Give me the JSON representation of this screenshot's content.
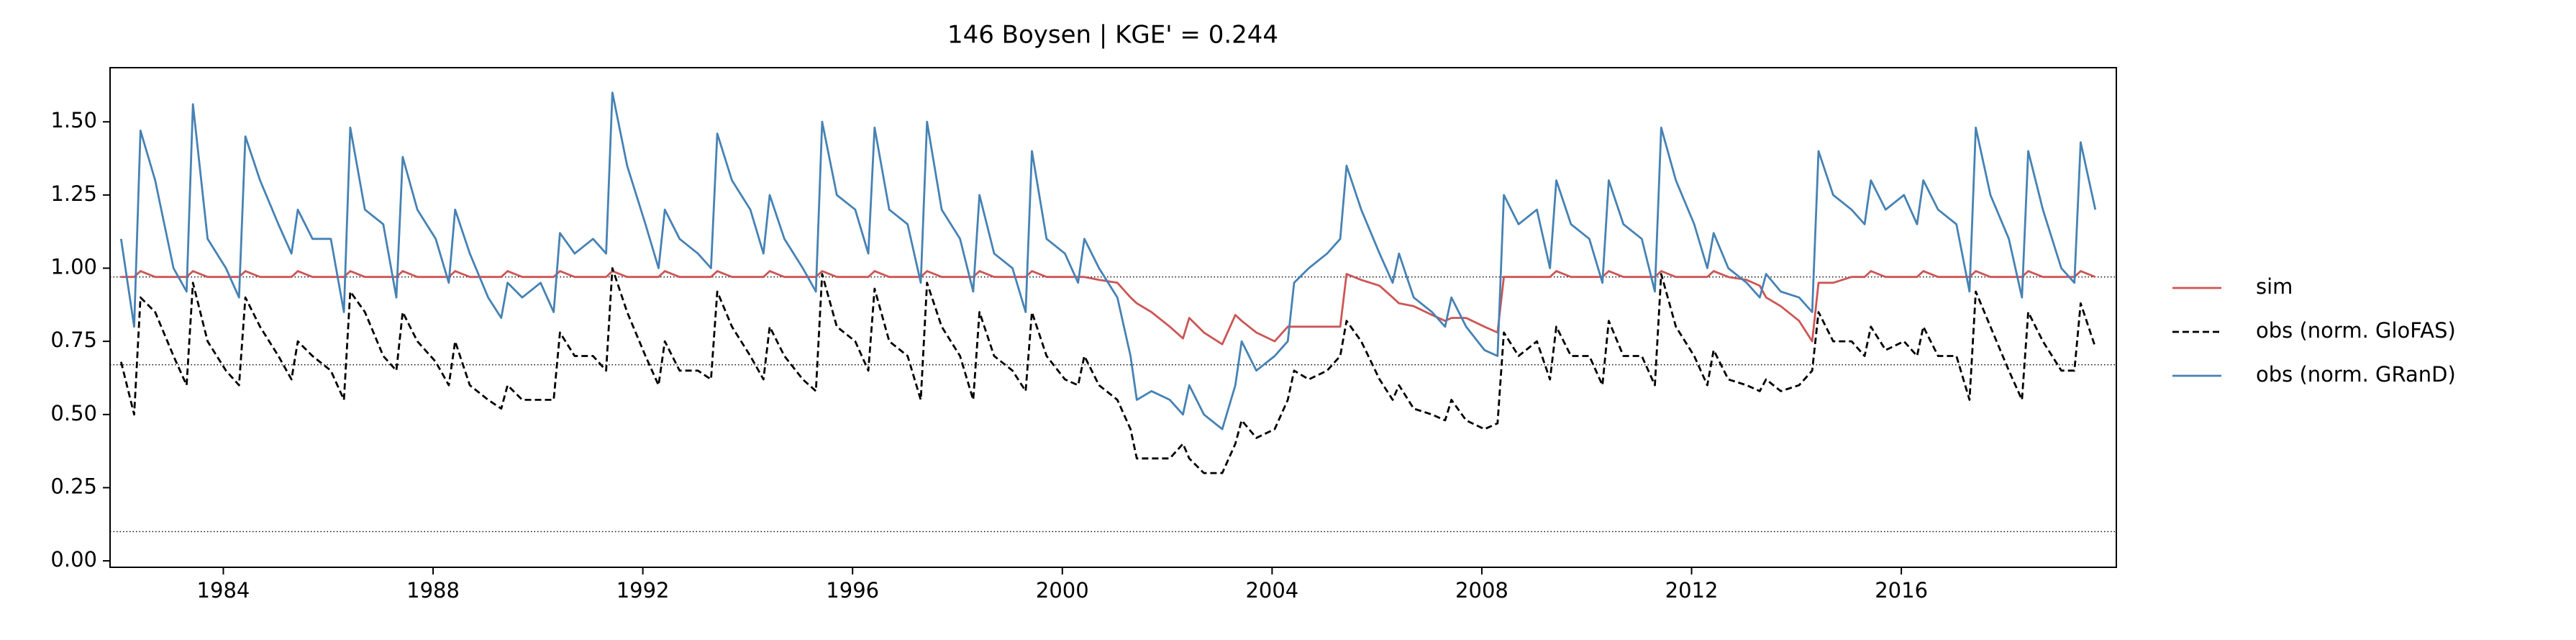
{
  "chart_data": {
    "type": "line",
    "title": "146  Boysen | KGE' = 0.244",
    "x": [
      1982.05,
      1982.3,
      1982.42,
      1982.7,
      1983.05,
      1983.3,
      1983.42,
      1983.7,
      1984.05,
      1984.3,
      1984.42,
      1984.7,
      1985.05,
      1985.3,
      1985.42,
      1985.7,
      1986.05,
      1986.3,
      1986.42,
      1986.7,
      1987.05,
      1987.3,
      1987.42,
      1987.7,
      1988.05,
      1988.3,
      1988.42,
      1988.7,
      1989.05,
      1989.3,
      1989.42,
      1989.7,
      1990.05,
      1990.3,
      1990.42,
      1990.7,
      1991.05,
      1991.3,
      1991.42,
      1991.7,
      1992.05,
      1992.3,
      1992.42,
      1992.7,
      1993.05,
      1993.3,
      1993.42,
      1993.7,
      1994.05,
      1994.3,
      1994.42,
      1994.7,
      1995.05,
      1995.3,
      1995.42,
      1995.7,
      1996.05,
      1996.3,
      1996.42,
      1996.7,
      1997.05,
      1997.3,
      1997.42,
      1997.7,
      1998.05,
      1998.3,
      1998.42,
      1998.7,
      1999.05,
      1999.3,
      1999.42,
      1999.7,
      2000.05,
      2000.3,
      2000.42,
      2000.7,
      2001.05,
      2001.3,
      2001.42,
      2001.7,
      2002.05,
      2002.3,
      2002.42,
      2002.7,
      2003.05,
      2003.3,
      2003.42,
      2003.7,
      2004.05,
      2004.3,
      2004.42,
      2004.7,
      2005.05,
      2005.3,
      2005.42,
      2005.7,
      2006.05,
      2006.3,
      2006.42,
      2006.7,
      2007.05,
      2007.3,
      2007.42,
      2007.7,
      2008.05,
      2008.3,
      2008.42,
      2008.7,
      2009.05,
      2009.3,
      2009.42,
      2009.7,
      2010.05,
      2010.3,
      2010.42,
      2010.7,
      2011.05,
      2011.3,
      2011.42,
      2011.7,
      2012.05,
      2012.3,
      2012.42,
      2012.7,
      2013.05,
      2013.3,
      2013.42,
      2013.7,
      2014.05,
      2014.3,
      2014.42,
      2014.7,
      2015.05,
      2015.3,
      2015.42,
      2015.7,
      2016.05,
      2016.3,
      2016.42,
      2016.7,
      2017.05,
      2017.3,
      2017.42,
      2017.7,
      2018.05,
      2018.3,
      2018.42,
      2018.7,
      2019.05,
      2019.3,
      2019.42,
      2019.7
    ],
    "series": [
      {
        "name": "sim",
        "color": "#cd5555",
        "linestyle": "solid",
        "values": [
          0.97,
          0.97,
          0.99,
          0.97,
          0.97,
          0.97,
          0.99,
          0.97,
          0.97,
          0.97,
          0.99,
          0.97,
          0.97,
          0.97,
          0.99,
          0.97,
          0.97,
          0.97,
          0.99,
          0.97,
          0.97,
          0.97,
          0.99,
          0.97,
          0.97,
          0.97,
          0.99,
          0.97,
          0.97,
          0.97,
          0.99,
          0.97,
          0.97,
          0.97,
          0.99,
          0.97,
          0.97,
          0.97,
          0.99,
          0.97,
          0.97,
          0.97,
          0.99,
          0.97,
          0.97,
          0.97,
          0.99,
          0.97,
          0.97,
          0.97,
          0.99,
          0.97,
          0.97,
          0.97,
          0.99,
          0.97,
          0.97,
          0.97,
          0.99,
          0.97,
          0.97,
          0.97,
          0.99,
          0.97,
          0.97,
          0.97,
          0.99,
          0.97,
          0.97,
          0.97,
          0.99,
          0.97,
          0.97,
          0.97,
          0.97,
          0.96,
          0.95,
          0.9,
          0.88,
          0.85,
          0.8,
          0.76,
          0.83,
          0.78,
          0.74,
          0.84,
          0.82,
          0.78,
          0.75,
          0.8,
          0.8,
          0.8,
          0.8,
          0.8,
          0.98,
          0.96,
          0.94,
          0.9,
          0.88,
          0.87,
          0.84,
          0.82,
          0.83,
          0.83,
          0.8,
          0.78,
          0.97,
          0.97,
          0.97,
          0.97,
          0.99,
          0.97,
          0.97,
          0.97,
          0.99,
          0.97,
          0.97,
          0.97,
          0.99,
          0.97,
          0.97,
          0.97,
          0.99,
          0.97,
          0.96,
          0.94,
          0.9,
          0.87,
          0.82,
          0.75,
          0.95,
          0.95,
          0.97,
          0.97,
          0.99,
          0.97,
          0.97,
          0.97,
          0.99,
          0.97,
          0.97,
          0.97,
          0.99,
          0.97,
          0.97,
          0.97,
          0.99,
          0.97,
          0.97,
          0.97,
          0.99,
          0.97
        ]
      },
      {
        "name": "obs (norm. GloFAS)",
        "color": "#000000",
        "linestyle": "dashed",
        "values": [
          0.68,
          0.5,
          0.9,
          0.85,
          0.7,
          0.6,
          0.95,
          0.75,
          0.65,
          0.6,
          0.9,
          0.8,
          0.7,
          0.62,
          0.75,
          0.7,
          0.65,
          0.55,
          0.92,
          0.85,
          0.7,
          0.65,
          0.85,
          0.75,
          0.68,
          0.6,
          0.75,
          0.6,
          0.55,
          0.52,
          0.6,
          0.55,
          0.55,
          0.55,
          0.78,
          0.7,
          0.7,
          0.65,
          1.0,
          0.85,
          0.7,
          0.6,
          0.75,
          0.65,
          0.65,
          0.62,
          0.92,
          0.8,
          0.7,
          0.62,
          0.8,
          0.7,
          0.62,
          0.58,
          0.98,
          0.8,
          0.75,
          0.65,
          0.93,
          0.75,
          0.7,
          0.55,
          0.95,
          0.8,
          0.7,
          0.55,
          0.85,
          0.7,
          0.65,
          0.58,
          0.85,
          0.7,
          0.62,
          0.6,
          0.7,
          0.6,
          0.55,
          0.45,
          0.35,
          0.35,
          0.35,
          0.4,
          0.35,
          0.3,
          0.3,
          0.4,
          0.48,
          0.42,
          0.45,
          0.55,
          0.65,
          0.62,
          0.65,
          0.7,
          0.82,
          0.75,
          0.62,
          0.55,
          0.6,
          0.52,
          0.5,
          0.48,
          0.55,
          0.48,
          0.45,
          0.47,
          0.78,
          0.7,
          0.75,
          0.62,
          0.8,
          0.7,
          0.7,
          0.6,
          0.82,
          0.7,
          0.7,
          0.6,
          0.98,
          0.8,
          0.7,
          0.6,
          0.72,
          0.62,
          0.6,
          0.58,
          0.62,
          0.58,
          0.6,
          0.65,
          0.85,
          0.75,
          0.75,
          0.7,
          0.8,
          0.72,
          0.75,
          0.7,
          0.8,
          0.7,
          0.7,
          0.55,
          0.92,
          0.8,
          0.65,
          0.55,
          0.85,
          0.75,
          0.65,
          0.65,
          0.88,
          0.73
        ]
      },
      {
        "name": "obs (norm. GRanD)",
        "color": "#4682b4",
        "linestyle": "solid",
        "values": [
          1.1,
          0.8,
          1.47,
          1.3,
          1.0,
          0.92,
          1.56,
          1.1,
          1.0,
          0.9,
          1.45,
          1.3,
          1.15,
          1.05,
          1.2,
          1.1,
          1.1,
          0.85,
          1.48,
          1.2,
          1.15,
          0.9,
          1.38,
          1.2,
          1.1,
          0.95,
          1.2,
          1.05,
          0.9,
          0.83,
          0.95,
          0.9,
          0.95,
          0.85,
          1.12,
          1.05,
          1.1,
          1.05,
          1.6,
          1.35,
          1.15,
          1.0,
          1.2,
          1.1,
          1.05,
          1.0,
          1.46,
          1.3,
          1.2,
          1.05,
          1.25,
          1.1,
          1.0,
          0.92,
          1.5,
          1.25,
          1.2,
          1.05,
          1.48,
          1.2,
          1.15,
          0.95,
          1.5,
          1.2,
          1.1,
          0.92,
          1.25,
          1.05,
          1.0,
          0.85,
          1.4,
          1.1,
          1.05,
          0.95,
          1.1,
          1.0,
          0.9,
          0.7,
          0.55,
          0.58,
          0.55,
          0.5,
          0.6,
          0.5,
          0.45,
          0.6,
          0.75,
          0.65,
          0.7,
          0.75,
          0.95,
          1.0,
          1.05,
          1.1,
          1.35,
          1.2,
          1.05,
          0.95,
          1.05,
          0.9,
          0.85,
          0.8,
          0.9,
          0.8,
          0.72,
          0.7,
          1.25,
          1.15,
          1.2,
          1.0,
          1.3,
          1.15,
          1.1,
          0.95,
          1.3,
          1.15,
          1.1,
          0.92,
          1.48,
          1.3,
          1.15,
          1.0,
          1.12,
          1.0,
          0.95,
          0.9,
          0.98,
          0.92,
          0.9,
          0.85,
          1.4,
          1.25,
          1.2,
          1.15,
          1.3,
          1.2,
          1.25,
          1.15,
          1.3,
          1.2,
          1.15,
          0.92,
          1.48,
          1.25,
          1.1,
          0.9,
          1.4,
          1.2,
          1.0,
          0.95,
          1.43,
          1.2
        ]
      }
    ],
    "hlines": [
      0.97,
      0.67,
      0.1
    ],
    "xlim": [
      1981.84,
      2020.1
    ],
    "ylim": [
      -0.022,
      1.685
    ],
    "xticks": [
      1984,
      1988,
      1992,
      1996,
      2000,
      2004,
      2008,
      2012,
      2016
    ],
    "yticks": [
      {
        "value": 0,
        "label": "0.00"
      },
      {
        "value": 0.25,
        "label": "0.25"
      },
      {
        "value": 0.5,
        "label": "0.50"
      },
      {
        "value": 0.75,
        "label": "0.75"
      },
      {
        "value": 1,
        "label": "1.00"
      },
      {
        "value": 1.25,
        "label": "1.25"
      },
      {
        "value": 1.5,
        "label": "1.50"
      }
    ],
    "grid": false,
    "legend": "outside right"
  }
}
